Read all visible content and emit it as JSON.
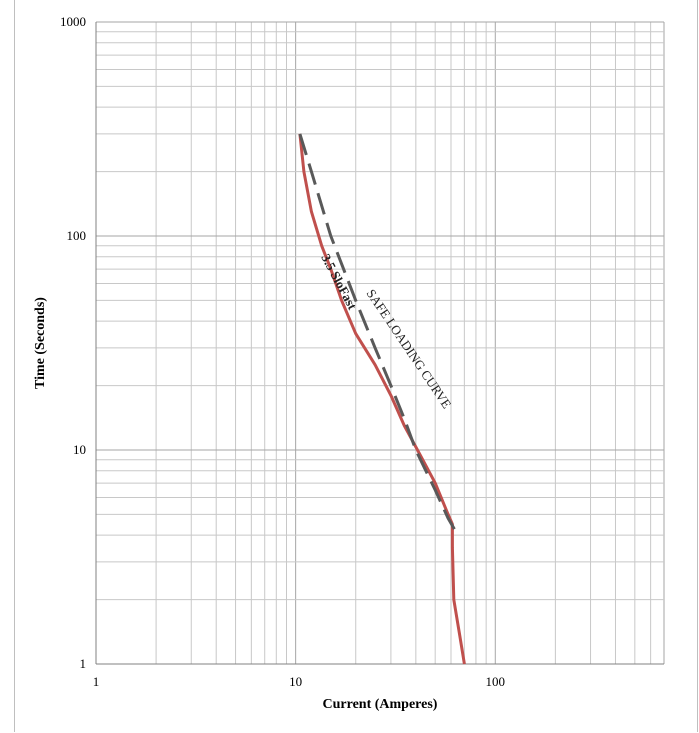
{
  "chart_data": {
    "type": "line",
    "xlabel": "Current (Amperes)",
    "ylabel": "Time (Seconds)",
    "x_scale": "log",
    "y_scale": "log",
    "xlim": [
      1,
      700
    ],
    "ylim": [
      1,
      1000
    ],
    "x_tick_labels": [
      "1",
      "10",
      "100"
    ],
    "y_tick_labels": [
      "1000",
      "100",
      "10",
      "1"
    ],
    "grid": true,
    "series": [
      {
        "name": "3.5 SloFast",
        "color": "#c0504d",
        "line_style": "solid",
        "points": [
          {
            "x": 10.5,
            "y": 300
          },
          {
            "x": 11,
            "y": 200
          },
          {
            "x": 12,
            "y": 130
          },
          {
            "x": 13.5,
            "y": 90
          },
          {
            "x": 15,
            "y": 70
          },
          {
            "x": 17,
            "y": 50
          },
          {
            "x": 20,
            "y": 35
          },
          {
            "x": 25,
            "y": 25
          },
          {
            "x": 30,
            "y": 18
          },
          {
            "x": 35,
            "y": 13
          },
          {
            "x": 42,
            "y": 9.5
          },
          {
            "x": 50,
            "y": 7
          },
          {
            "x": 58,
            "y": 5
          },
          {
            "x": 61,
            "y": 4.5
          },
          {
            "x": 61,
            "y": 3.5
          },
          {
            "x": 62,
            "y": 2
          },
          {
            "x": 66,
            "y": 1.4
          },
          {
            "x": 70,
            "y": 1
          }
        ]
      },
      {
        "name": "SAFE LOADING CURVE",
        "color": "#595959",
        "line_style": "dashed",
        "points": [
          {
            "x": 10.5,
            "y": 300
          },
          {
            "x": 12,
            "y": 200
          },
          {
            "x": 15,
            "y": 100
          },
          {
            "x": 20,
            "y": 50
          },
          {
            "x": 25,
            "y": 30
          },
          {
            "x": 30,
            "y": 20
          },
          {
            "x": 35,
            "y": 14
          },
          {
            "x": 40,
            "y": 10
          },
          {
            "x": 50,
            "y": 6.5
          },
          {
            "x": 58,
            "y": 4.8
          },
          {
            "x": 65,
            "y": 4
          }
        ]
      }
    ]
  }
}
